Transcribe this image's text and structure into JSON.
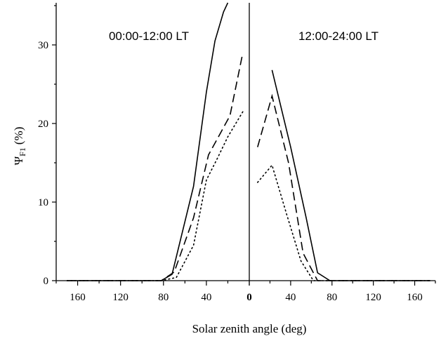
{
  "chart_data": {
    "type": "line",
    "xlabel": "Solar zenith angle (deg)",
    "ylabel_main": "Ψ",
    "ylabel_sub": "F1",
    "ylabel_unit": "(%)",
    "ylim": [
      0,
      35
    ],
    "yticks": [
      0,
      10,
      20,
      30
    ],
    "grid": false,
    "panels": [
      {
        "title": "00:00-12:00 LT",
        "xlim": [
          180,
          0
        ],
        "xticks": [
          160,
          120,
          80,
          40
        ],
        "series": [
          {
            "style": "solid",
            "x": [
              170,
              160,
              140,
              120,
              100,
              82,
              72,
              52,
              40,
              32,
              24,
              20
            ],
            "y": [
              0,
              0,
              0,
              0,
              0,
              0,
              0.8,
              12,
              24,
              30.5,
              34.2,
              36
            ]
          },
          {
            "style": "dashed",
            "x": [
              170,
              160,
              140,
              120,
              100,
              82,
              70,
              52,
              38,
              26,
              18,
              6
            ],
            "y": [
              0,
              0,
              0,
              0,
              0,
              0,
              1.1,
              8,
              16,
              19,
              21,
              29
            ]
          },
          {
            "style": "dotted",
            "x": [
              170,
              160,
              140,
              120,
              100,
              82,
              68,
              52,
              40,
              30,
              20,
              6
            ],
            "y": [
              0,
              0,
              0,
              0,
              0,
              0,
              0.4,
              4.5,
              12.8,
              15.5,
              18.3,
              21.5
            ]
          }
        ]
      },
      {
        "title": "12:00-24:00 LT",
        "xlim": [
          0,
          180
        ],
        "xticks": [
          0,
          40,
          80,
          120,
          160
        ],
        "series": [
          {
            "style": "solid",
            "x": [
              22,
              40,
              55,
              66,
              78,
              100,
              120,
              140,
              160,
              175
            ],
            "y": [
              26.8,
              17,
              8,
              1,
              0,
              0,
              0,
              0,
              0,
              0
            ]
          },
          {
            "style": "dashed",
            "x": [
              8,
              22,
              38,
              52,
              66,
              78,
              100,
              120,
              140,
              160,
              175
            ],
            "y": [
              17,
              23.5,
              15,
              3.5,
              0,
              0,
              0,
              0,
              0,
              0,
              0
            ]
          },
          {
            "style": "dotted",
            "x": [
              8,
              22,
              36,
              50,
              62,
              78,
              100,
              120,
              140,
              160,
              175
            ],
            "y": [
              12.5,
              14.7,
              8.5,
              2.5,
              0,
              0,
              0,
              0,
              0,
              0,
              0
            ]
          }
        ]
      }
    ]
  }
}
